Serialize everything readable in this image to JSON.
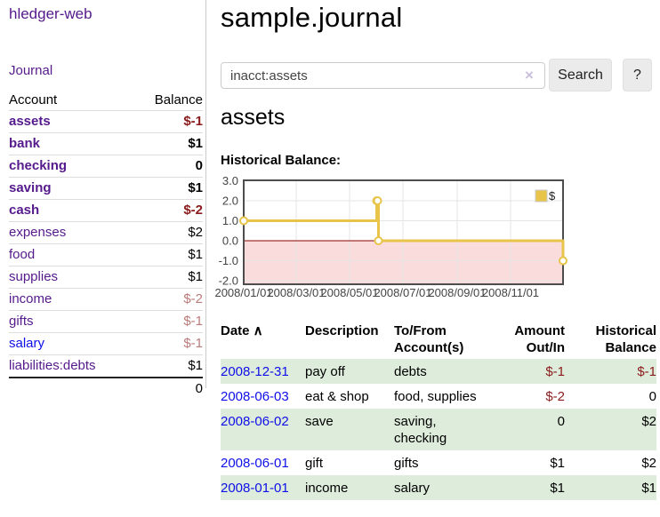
{
  "app": {
    "title": "hledger-web"
  },
  "sidebar": {
    "nav_journal": "Journal",
    "accounts": {
      "headers": {
        "account": "Account",
        "balance": "Balance"
      },
      "rows": [
        {
          "account": "assets",
          "balance": "$-1",
          "indent": 0,
          "bold": true,
          "negative": true,
          "link": "purple"
        },
        {
          "account": "bank",
          "balance": "$1",
          "indent": 1,
          "bold": true,
          "negative": false,
          "link": "purple"
        },
        {
          "account": "checking",
          "balance": "0",
          "indent": 2,
          "bold": true,
          "negative": false,
          "link": "purple"
        },
        {
          "account": "saving",
          "balance": "$1",
          "indent": 2,
          "bold": true,
          "negative": false,
          "link": "purple"
        },
        {
          "account": "cash",
          "balance": "$-2",
          "indent": 1,
          "bold": true,
          "negative": true,
          "link": "purple"
        },
        {
          "account": "expenses",
          "balance": "$2",
          "indent": 0,
          "bold": false,
          "negative": false,
          "link": "purple"
        },
        {
          "account": "food",
          "balance": "$1",
          "indent": 1,
          "bold": false,
          "negative": false,
          "link": "purple"
        },
        {
          "account": "supplies",
          "balance": "$1",
          "indent": 1,
          "bold": false,
          "negative": false,
          "link": "purple"
        },
        {
          "account": "income",
          "balance": "$-2",
          "indent": 0,
          "bold": false,
          "negative": true,
          "link": "purple"
        },
        {
          "account": "gifts",
          "balance": "$-1",
          "indent": 1,
          "bold": false,
          "negative": true,
          "link": "purple"
        },
        {
          "account": "salary",
          "balance": "$-1",
          "indent": 1,
          "bold": false,
          "negative": true,
          "link": "blue"
        },
        {
          "account": "liabilities:debts",
          "balance": "$1",
          "indent": 0,
          "bold": false,
          "negative": false,
          "link": "purple"
        }
      ],
      "total": "0"
    }
  },
  "main": {
    "title": "sample.journal",
    "search": {
      "value": "inacct:assets",
      "clear_icon": "×",
      "search_button": "Search",
      "help_button": "?"
    },
    "account_heading": "assets",
    "chart_heading": "Historical Balance:"
  },
  "chart_data": {
    "type": "line",
    "style": "step",
    "title": "Historical Balance:",
    "series": [
      {
        "name": "$",
        "points": [
          [
            "2008-01-01",
            1
          ],
          [
            "2008-06-01",
            2
          ],
          [
            "2008-06-02",
            2
          ],
          [
            "2008-06-03",
            0
          ],
          [
            "2008-12-31",
            -1
          ]
        ]
      }
    ],
    "x_ticks": [
      "2008/01/01",
      "2008/03/01",
      "2008/05/01",
      "2008/07/01",
      "2008/09/01",
      "2008/11/01"
    ],
    "y_ticks": [
      "3.0",
      "2.0",
      "1.0",
      "0.0",
      "-1.0",
      "-2.0"
    ],
    "xlim": [
      "2008/01/01",
      "2008/12/31"
    ],
    "ylim": [
      -2.2,
      3.05
    ],
    "grid": true,
    "legend": {
      "label": "$",
      "position": "top-right"
    },
    "line_color": "#e8c44a",
    "marker_fill": "#ffffff",
    "negative_region_color": "#fadcdc",
    "zero_line_color": "#8b0000",
    "grid_color": "#e6e6e6",
    "frame_color": "#4d4d4d",
    "tick_label_color": "#444444"
  },
  "transactions": {
    "headers": [
      {
        "label": "Date",
        "sort": "∧",
        "align": "left"
      },
      {
        "label": "Description",
        "sort": "",
        "align": "left"
      },
      {
        "label": "To/From Account(s)",
        "sort": "",
        "align": "left"
      },
      {
        "label": "Amount Out/In",
        "sort": "",
        "align": "right"
      },
      {
        "label": "Historical Balance",
        "sort": "",
        "align": "right"
      }
    ],
    "rows": [
      {
        "date": "2008-12-31",
        "description": "pay off",
        "accounts": "debts",
        "amount": "$-1",
        "amount_negative": true,
        "balance": "$-1",
        "balance_negative": true,
        "shaded": true
      },
      {
        "date": "2008-06-03",
        "description": "eat & shop",
        "accounts": "food, supplies",
        "amount": "$-2",
        "amount_negative": true,
        "balance": "0",
        "balance_negative": false,
        "shaded": false
      },
      {
        "date": "2008-06-02",
        "description": "save",
        "accounts": "saving, checking",
        "amount": "0",
        "amount_negative": false,
        "balance": "$2",
        "balance_negative": false,
        "shaded": true
      },
      {
        "date": "2008-06-01",
        "description": "gift",
        "accounts": "gifts",
        "amount": "$1",
        "amount_negative": false,
        "balance": "$2",
        "balance_negative": false,
        "shaded": false
      },
      {
        "date": "2008-01-01",
        "description": "income",
        "accounts": "salary",
        "amount": "$1",
        "amount_negative": false,
        "balance": "$1",
        "balance_negative": false,
        "shaded": true
      }
    ]
  },
  "colors": {
    "link_purple": "#551a8b",
    "link_blue": "#0f0fe8",
    "negative_strong": "#8b1a1a",
    "negative_soft": "#bb7a7a",
    "row_green": "#deecdb",
    "divider": "#cccccc",
    "button_bg": "#ebebeb"
  }
}
